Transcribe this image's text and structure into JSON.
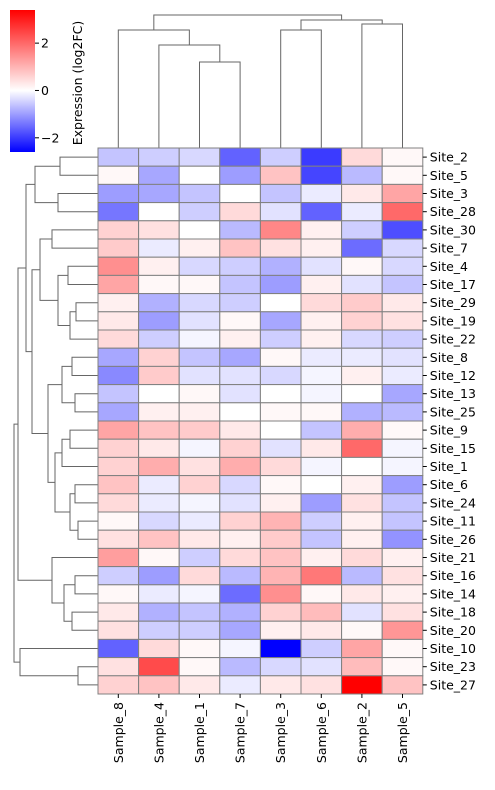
{
  "chart_data": {
    "type": "heatmap",
    "title": "",
    "columns": [
      "Sample_8",
      "Sample_4",
      "Sample_1",
      "Sample_7",
      "Sample_3",
      "Sample_6",
      "Sample_2",
      "Sample_5"
    ],
    "rows": [
      "Site_2",
      "Site_5",
      "Site_3",
      "Site_28",
      "Site_30",
      "Site_7",
      "Site_4",
      "Site_17",
      "Site_29",
      "Site_19",
      "Site_22",
      "Site_8",
      "Site_12",
      "Site_13",
      "Site_25",
      "Site_9",
      "Site_15",
      "Site_1",
      "Site_6",
      "Site_24",
      "Site_11",
      "Site_26",
      "Site_21",
      "Site_16",
      "Site_14",
      "Site_18",
      "Site_20",
      "Site_10",
      "Site_23",
      "Site_27"
    ],
    "values": [
      [
        -0.6,
        -0.5,
        -0.4,
        -1.6,
        -0.5,
        -2.0,
        0.5,
        0.1
      ],
      [
        0.1,
        -0.9,
        0.0,
        -1.0,
        0.8,
        -1.9,
        -0.7,
        0.1
      ],
      [
        -1.0,
        -0.9,
        -0.6,
        0.0,
        -0.6,
        -0.2,
        0.3,
        1.2
      ],
      [
        -1.4,
        0.0,
        -0.5,
        0.5,
        -0.3,
        -1.6,
        -0.2,
        2.0
      ],
      [
        0.6,
        0.4,
        0.0,
        -0.7,
        1.6,
        0.2,
        -0.5,
        -1.8
      ],
      [
        0.7,
        -0.2,
        0.2,
        0.8,
        0.4,
        0.2,
        -1.5,
        -0.4
      ],
      [
        1.5,
        0.2,
        -0.4,
        -0.5,
        -0.8,
        -0.3,
        0.1,
        -0.4
      ],
      [
        1.2,
        0.1,
        0.1,
        -0.6,
        -1.0,
        0.2,
        -0.3,
        -0.6
      ],
      [
        0.2,
        -0.8,
        -0.4,
        -0.5,
        0.0,
        0.5,
        0.7,
        0.3
      ],
      [
        0.3,
        -1.0,
        -0.3,
        0.1,
        -0.9,
        0.2,
        0.6,
        0.4
      ],
      [
        0.5,
        -0.5,
        -0.1,
        0.2,
        -0.5,
        0.2,
        -0.4,
        -0.5
      ],
      [
        -0.9,
        0.6,
        -0.6,
        -0.9,
        0.1,
        -0.2,
        -0.2,
        -0.3
      ],
      [
        -1.2,
        0.7,
        -0.3,
        -0.3,
        -0.4,
        -0.1,
        0.2,
        -0.2
      ],
      [
        -0.6,
        0.0,
        0.1,
        -0.3,
        0.0,
        -0.1,
        0.0,
        -0.9
      ],
      [
        -0.9,
        0.2,
        0.2,
        0.0,
        0.1,
        0.1,
        -0.8,
        -0.7
      ],
      [
        1.2,
        0.8,
        0.7,
        0.3,
        0.0,
        -0.6,
        1.1,
        0.1
      ],
      [
        0.6,
        0.3,
        -0.1,
        0.6,
        -0.3,
        0.3,
        2.0,
        -0.1
      ],
      [
        0.6,
        1.1,
        0.4,
        1.1,
        0.5,
        -0.1,
        0.0,
        -0.1
      ],
      [
        0.8,
        -0.2,
        0.6,
        -0.4,
        0.1,
        0.0,
        0.2,
        -1.0
      ],
      [
        0.5,
        -0.2,
        -0.1,
        -0.3,
        0.2,
        -1.0,
        0.4,
        -0.6
      ],
      [
        0.1,
        -0.4,
        -0.2,
        0.6,
        1.0,
        -0.5,
        0.2,
        -0.6
      ],
      [
        0.4,
        0.8,
        0.3,
        0.2,
        0.7,
        -0.6,
        0.2,
        -1.1
      ],
      [
        1.3,
        0.1,
        -0.5,
        0.5,
        0.8,
        0.2,
        0.5,
        0.2
      ],
      [
        -0.5,
        -1.0,
        0.5,
        -0.7,
        1.0,
        1.8,
        -0.7,
        0.4
      ],
      [
        0.1,
        -0.2,
        -0.1,
        -1.5,
        1.5,
        0.1,
        0.3,
        0.2
      ],
      [
        0.3,
        -0.8,
        -0.6,
        -0.8,
        0.6,
        0.9,
        -0.3,
        0.4
      ],
      [
        0.4,
        -0.5,
        -0.5,
        -0.9,
        0.2,
        0.3,
        0.1,
        1.4
      ],
      [
        -1.6,
        0.5,
        0.1,
        -0.1,
        -2.6,
        -0.5,
        1.2,
        0.1
      ],
      [
        0.4,
        2.4,
        0.1,
        -0.7,
        -0.4,
        -0.3,
        0.9,
        0.1
      ],
      [
        0.6,
        0.8,
        0.3,
        -0.2,
        0.3,
        0.4,
        3.4,
        0.8
      ]
    ],
    "colormap": {
      "low": "#0000ff",
      "mid": "#ffffff",
      "high": "#ff0000"
    },
    "vmin": -2.6,
    "vmax": 3.4,
    "colorbar": {
      "label": "Expression (log2FC)",
      "ticks": [
        2,
        0,
        -2
      ],
      "tick_labels": [
        "2",
        "0",
        "−2"
      ]
    },
    "clustering": {
      "rows": true,
      "columns": true
    }
  }
}
